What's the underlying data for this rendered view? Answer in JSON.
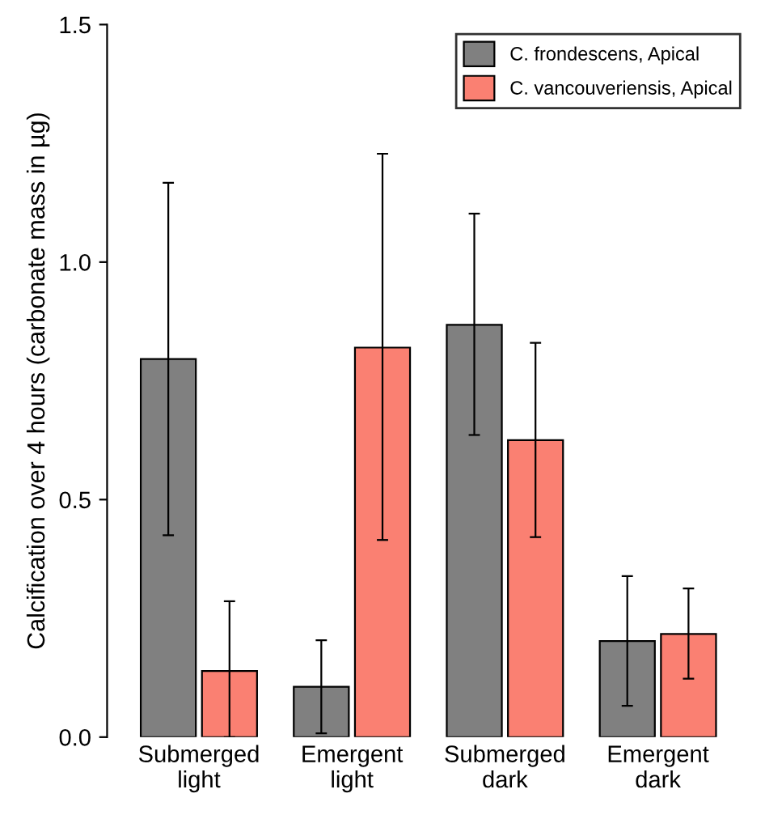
{
  "chart_data": {
    "type": "bar",
    "ylabel": "Calcification over 4 hours (carbonate mass in µg)",
    "categories": [
      "Submerged\nlight",
      "Emergent\nlight",
      "Submerged\ndark",
      "Emergent\ndark"
    ],
    "series": [
      {
        "name": "C. frondescens, Apical",
        "color": "#808080",
        "values": [
          0.796,
          0.106,
          0.868,
          0.202
        ],
        "errors": [
          [
            0.425,
            1.167
          ],
          [
            0.008,
            0.204
          ],
          [
            0.636,
            1.102
          ],
          [
            0.066,
            0.339
          ]
        ]
      },
      {
        "name": "C. vancouveriensis, Apical",
        "color": "#fa8072",
        "values": [
          0.139,
          0.82,
          0.625,
          0.217
        ],
        "errors": [
          [
            0.0,
            0.286
          ],
          [
            0.415,
            1.228
          ],
          [
            0.421,
            0.83
          ],
          [
            0.123,
            0.313
          ]
        ]
      }
    ],
    "ylim": [
      0,
      1.5
    ],
    "yticks": [
      {
        "value": 0,
        "label": "0.0"
      },
      {
        "value": 0.5,
        "label": "0.5"
      },
      {
        "value": 1,
        "label": "1.0"
      },
      {
        "value": 1.5,
        "label": "1.5"
      }
    ],
    "legend": "top right",
    "grid": false
  }
}
